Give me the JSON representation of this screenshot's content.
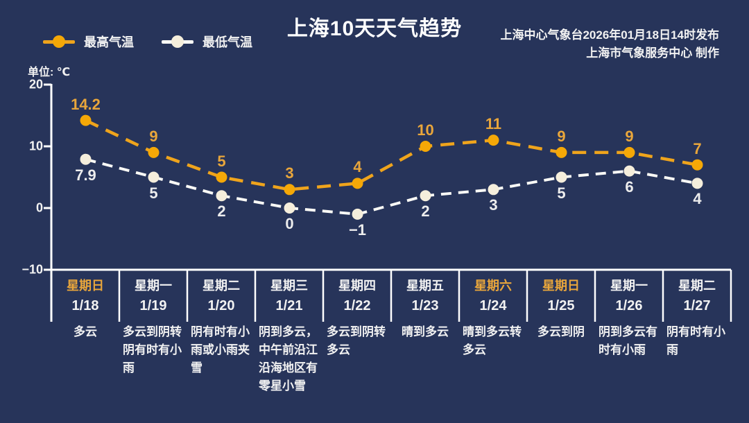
{
  "header": {
    "title": "上海10天天气趋势",
    "issued_by": "上海中心气象台2026年01月18日14时发布",
    "produced_by": "上海市气象服务中心 制作",
    "unit_label": "单位: ℃"
  },
  "legend": {
    "max_label": "最高气温",
    "min_label": "最低气温"
  },
  "colors": {
    "background": "#27345A",
    "accent": "#EFA41C",
    "accent_dot": "#F5A807",
    "accent_text": "#E9A63B",
    "min_line": "#FAFAF6",
    "min_dot": "#F5EEDC",
    "axis": "#FFFFFF"
  },
  "chart_data": {
    "type": "line",
    "title": "上海10天天气趋势",
    "unit": "℃",
    "ylim": [
      -10,
      20
    ],
    "yticks": [
      20,
      10,
      0,
      -10
    ],
    "grid": false,
    "legend_position": "top-left",
    "categories": [
      "1/18",
      "1/19",
      "1/20",
      "1/21",
      "1/22",
      "1/23",
      "1/24",
      "1/25",
      "1/26",
      "1/27"
    ],
    "series": [
      {
        "name": "最高气温",
        "style": "dashed",
        "line_color": "#EFA41C",
        "dot_color": "#F5A807",
        "values": [
          14.2,
          9,
          5,
          3,
          4,
          10,
          11,
          9,
          9,
          7
        ]
      },
      {
        "name": "最低气温",
        "style": "dashed",
        "line_color": "#FAFAF6",
        "dot_color": "#F5EEDC",
        "values": [
          7.9,
          5,
          2,
          0,
          -1,
          2,
          3,
          5,
          6,
          4
        ]
      }
    ],
    "days": [
      {
        "weekday": "星期日",
        "date": "1/18",
        "weather": "多云",
        "weekend": true
      },
      {
        "weekday": "星期一",
        "date": "1/19",
        "weather": "多云到阴转阴有时有小雨",
        "weekend": false
      },
      {
        "weekday": "星期二",
        "date": "1/20",
        "weather": "阴有时有小雨或小雨夹雪",
        "weekend": false
      },
      {
        "weekday": "星期三",
        "date": "1/21",
        "weather": "阴到多云，中午前沿江沿海地区有零星小雪",
        "weekend": false
      },
      {
        "weekday": "星期四",
        "date": "1/22",
        "weather": "多云到阴转多云",
        "weekend": false
      },
      {
        "weekday": "星期五",
        "date": "1/23",
        "weather": "晴到多云",
        "weekend": false
      },
      {
        "weekday": "星期六",
        "date": "1/24",
        "weather": "晴到多云转多云",
        "weekend": true
      },
      {
        "weekday": "星期日",
        "date": "1/25",
        "weather": "多云到阴",
        "weekend": true
      },
      {
        "weekday": "星期一",
        "date": "1/26",
        "weather": "阴到多云有时有小雨",
        "weekend": false
      },
      {
        "weekday": "星期二",
        "date": "1/27",
        "weather": "阴有时有小雨",
        "weekend": false
      }
    ]
  }
}
